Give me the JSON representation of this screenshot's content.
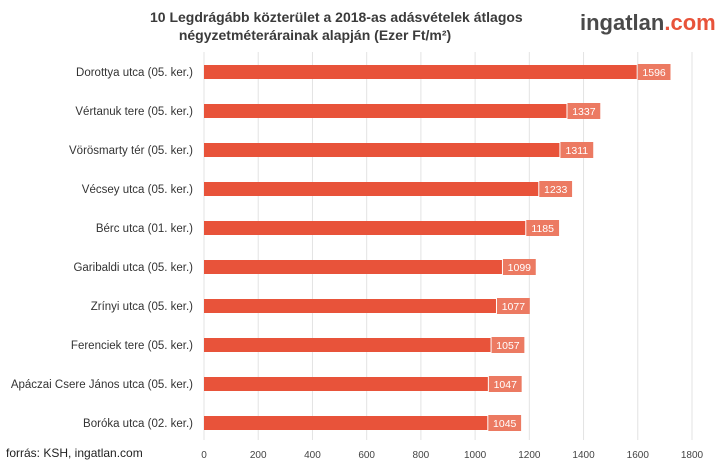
{
  "header": {
    "title_line1": "10 Legdrágább közterület a 2018-as adásvételek átlagos",
    "title_line2": "négyzetméterárainak alapján (Ezer Ft/m²)"
  },
  "logo": {
    "name": "ingatlan",
    "dot": ".",
    "tld": "com"
  },
  "footer": {
    "source": "forrás: KSH, ingatlan.com"
  },
  "colors": {
    "bar": "#e8533a",
    "label_box": "#ec7a62",
    "grid": "#e3e3e3"
  },
  "chart_data": {
    "type": "bar",
    "orientation": "horizontal",
    "title": "10 Legdrágább közterület a 2018-as adásvételek átlagos négyzetméterárainak alapján (Ezer Ft/m²)",
    "categories": [
      "Dorottya utca (05. ker.)",
      "Vértanuk tere (05. ker.)",
      "Vörösmarty tér (05. ker.)",
      "Vécsey utca (05. ker.)",
      "Bérc utca (01. ker.)",
      "Garibaldi utca (05. ker.)",
      "Zrínyi utca (05. ker.)",
      "Ferenciek tere (05. ker.)",
      "Apáczai Csere János utca (05. ker.)",
      "Boróka utca (02. ker.)"
    ],
    "values": [
      1596,
      1337,
      1311,
      1233,
      1185,
      1099,
      1077,
      1057,
      1047,
      1045
    ],
    "xlim": [
      0,
      1800
    ],
    "xticks": [
      0,
      200,
      400,
      600,
      800,
      1000,
      1200,
      1400,
      1600,
      1800
    ],
    "grid": "vertical",
    "data_labels": true
  }
}
